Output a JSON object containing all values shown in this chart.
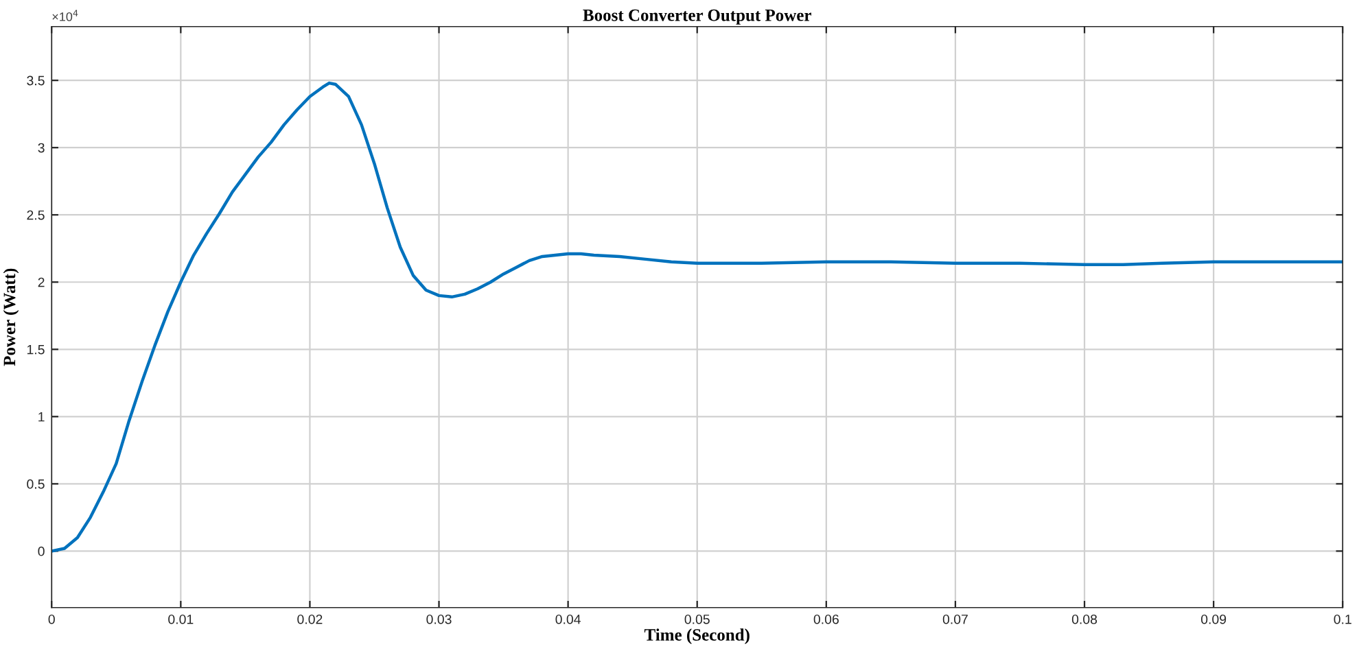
{
  "chart_data": {
    "type": "line",
    "title": "Boost Converter Output Power",
    "xlabel": "Time (Second)",
    "ylabel": "Power (Watt)",
    "annotations": [
      "×10$^{4}$"
    ],
    "series": [
      {
        "color": "#0072bd",
        "x": [
          0,
          0.001,
          0.002,
          0.003,
          0.004,
          0.005,
          0.006,
          0.007,
          0.008,
          0.009,
          0.01,
          0.011,
          0.012,
          0.013,
          0.014,
          0.015,
          0.016,
          0.017,
          0.018,
          0.019,
          0.02,
          0.021,
          0.0215,
          0.022,
          0.023,
          0.024,
          0.025,
          0.026,
          0.027,
          0.028,
          0.029,
          0.03,
          0.031,
          0.032,
          0.033,
          0.034,
          0.035,
          0.036,
          0.037,
          0.038,
          0.039,
          0.04,
          0.041,
          0.042,
          0.044,
          0.046,
          0.048,
          0.05,
          0.055,
          0.06,
          0.065,
          0.07,
          0.075,
          0.08,
          0.083,
          0.086,
          0.09,
          0.095,
          0.1
        ],
        "values": [
          0,
          0.02,
          0.1,
          0.25,
          0.44,
          0.65,
          0.97,
          1.26,
          1.53,
          1.78,
          2.0,
          2.2,
          2.36,
          2.51,
          2.67,
          2.8,
          2.93,
          3.04,
          3.17,
          3.28,
          3.38,
          3.45,
          3.48,
          3.47,
          3.38,
          3.17,
          2.88,
          2.55,
          2.26,
          2.05,
          1.94,
          1.9,
          1.89,
          1.91,
          1.95,
          2.0,
          2.06,
          2.11,
          2.16,
          2.19,
          2.2,
          2.21,
          2.21,
          2.2,
          2.19,
          2.17,
          2.15,
          2.14,
          2.14,
          2.15,
          2.15,
          2.14,
          2.14,
          2.13,
          2.13,
          2.14,
          2.15,
          2.15,
          2.15
        ]
      }
    ],
    "xlim": [
      0,
      0.1
    ],
    "xticks": [
      0,
      0.01,
      0.02,
      0.03,
      0.04,
      0.05,
      0.06,
      0.07,
      0.08,
      0.09,
      0.1
    ],
    "ylim": [
      -0.42,
      3.9
    ],
    "yticks": [
      0,
      0.5,
      1,
      1.5,
      2,
      2.5,
      3,
      3.5
    ],
    "grid": true,
    "legend": false,
    "marker": "none",
    "line_style": "solid"
  }
}
